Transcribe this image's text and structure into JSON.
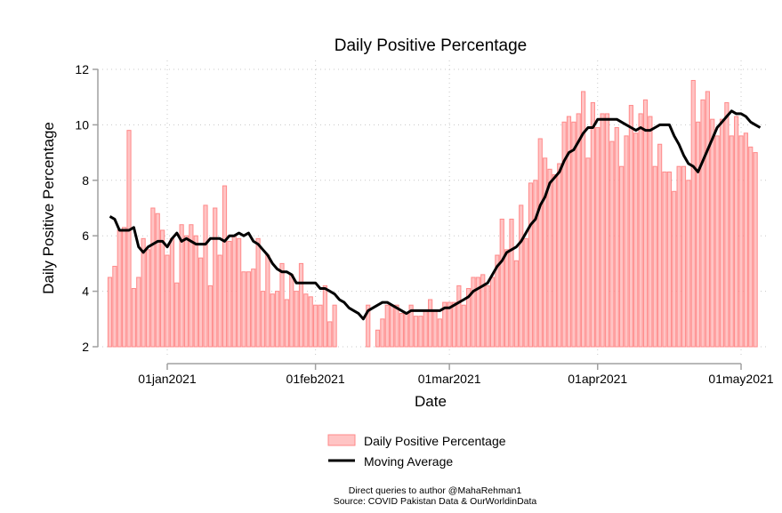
{
  "chart_data": {
    "type": "bar",
    "title": "Daily Positive Percentage",
    "xlabel": "Date",
    "ylabel": "Daily Positive Percentage",
    "ylim": [
      2,
      12
    ],
    "yticks": [
      2,
      4,
      6,
      8,
      10,
      12
    ],
    "ytick_labels": [
      "2",
      "4",
      "6",
      "8",
      "10",
      "12"
    ],
    "x_start_date": "2020-12-20",
    "x_end_date": "2021-05-04",
    "xticks": [
      {
        "date": "2021-01-01",
        "label": "01jan2021"
      },
      {
        "date": "2021-02-01",
        "label": "01feb2021"
      },
      {
        "date": "2021-03-01",
        "label": "01mar2021"
      },
      {
        "date": "2021-04-01",
        "label": "01apr2021"
      },
      {
        "date": "2021-05-01",
        "label": "01may2021"
      }
    ],
    "grid": true,
    "legend_position": "bottom",
    "series": [
      {
        "name": "Daily Positive Percentage",
        "kind": "bar",
        "color": "#ff8a8a",
        "fill": "#ffc4c4",
        "start_date": "2020-12-20",
        "values": [
          4.5,
          4.9,
          6.2,
          6.3,
          9.8,
          4.1,
          4.5,
          5.9,
          5.5,
          7.0,
          6.8,
          6.2,
          5.3,
          5.9,
          4.3,
          6.4,
          6.0,
          6.4,
          6.0,
          5.2,
          7.1,
          4.2,
          7.0,
          5.3,
          7.8,
          5.8,
          6.0,
          5.9,
          4.7,
          4.7,
          4.8,
          5.9,
          4.0,
          5.3,
          3.9,
          4.0,
          5.0,
          3.7,
          4.6,
          4.0,
          5.0,
          3.9,
          3.8,
          3.5,
          3.5,
          4.2,
          2.9,
          3.5,
          null,
          null,
          null,
          null,
          null,
          null,
          3.5,
          null,
          2.6,
          3.0,
          3.5,
          3.5,
          3.5,
          3.2,
          3.2,
          3.5,
          3.1,
          3.1,
          3.3,
          3.7,
          3.3,
          3.0,
          3.6,
          3.6,
          3.6,
          4.2,
          3.5,
          4.1,
          4.5,
          4.5,
          4.6,
          4.2,
          4.5,
          5.3,
          6.6,
          5.5,
          6.6,
          5.1,
          7.1,
          5.9,
          7.9,
          8.0,
          9.5,
          8.8,
          8.4,
          8.2,
          8.6,
          10.1,
          10.3,
          10.1,
          10.4,
          11.2,
          8.8,
          10.8,
          9.9,
          10.4,
          10.4,
          9.4,
          9.9,
          8.5,
          9.6,
          10.7,
          9.7,
          10.4,
          10.9,
          10.3,
          8.5,
          9.3,
          8.3,
          8.3,
          7.6,
          8.5,
          8.5,
          8.0,
          11.6,
          10.1,
          10.9,
          11.2,
          10.2,
          9.6,
          10.2,
          10.8,
          9.6,
          10.3,
          9.6,
          9.7,
          9.2,
          9.0
        ]
      },
      {
        "name": "Moving Average",
        "kind": "line",
        "color": "#000000",
        "start_date": "2020-12-20",
        "values": [
          6.7,
          6.6,
          6.2,
          6.2,
          6.2,
          6.3,
          5.6,
          5.4,
          5.6,
          5.7,
          5.8,
          5.8,
          5.6,
          5.9,
          6.1,
          5.8,
          5.9,
          5.8,
          5.7,
          5.7,
          5.7,
          5.9,
          5.9,
          5.9,
          5.8,
          6.0,
          6.0,
          6.1,
          6.0,
          6.1,
          5.8,
          5.7,
          5.5,
          5.3,
          5.0,
          4.8,
          4.7,
          4.7,
          4.6,
          4.3,
          4.3,
          4.3,
          4.3,
          4.3,
          4.1,
          4.1,
          4.0,
          3.9,
          3.7,
          3.6,
          3.4,
          3.3,
          3.2,
          3.0,
          3.3,
          3.4,
          3.5,
          3.6,
          3.6,
          3.5,
          3.4,
          3.3,
          3.2,
          3.3,
          3.3,
          3.3,
          3.3,
          3.3,
          3.3,
          3.3,
          3.4,
          3.4,
          3.5,
          3.6,
          3.7,
          3.8,
          4.0,
          4.1,
          4.2,
          4.3,
          4.6,
          4.9,
          5.1,
          5.4,
          5.5,
          5.6,
          5.8,
          6.1,
          6.4,
          6.6,
          7.1,
          7.4,
          7.9,
          8.1,
          8.3,
          8.7,
          9.0,
          9.1,
          9.4,
          9.7,
          9.9,
          9.9,
          10.2,
          10.2,
          10.2,
          10.2,
          10.2,
          10.1,
          10.0,
          9.9,
          9.8,
          9.9,
          9.8,
          9.8,
          9.9,
          10.0,
          10.0,
          10.0,
          9.6,
          9.3,
          8.9,
          8.6,
          8.5,
          8.3,
          8.7,
          9.1,
          9.5,
          9.9,
          10.1,
          10.3,
          10.5,
          10.4,
          10.4,
          10.3,
          10.1,
          10.0,
          9.9
        ]
      }
    ],
    "legend": [
      {
        "label": "Daily Positive Percentage",
        "kind": "bar"
      },
      {
        "label": "Moving Average",
        "kind": "line"
      }
    ]
  },
  "notes": {
    "line1": "Direct queries to author @MahaRehman1",
    "line2": "Source: COVID Pakistan Data & OurWorldinData"
  }
}
